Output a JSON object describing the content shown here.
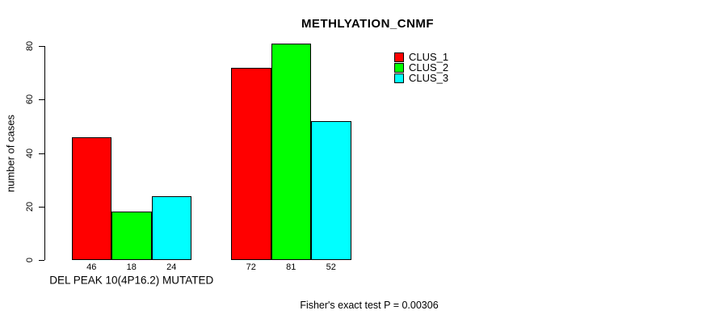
{
  "chart_data": {
    "type": "bar",
    "title": "METHLYATION_CNMF",
    "ylabel": "number of cases",
    "xlabel": "",
    "ylim": [
      0,
      80
    ],
    "yticks": [
      0,
      20,
      40,
      60,
      80
    ],
    "grid": false,
    "legend_position": "top-right",
    "categories": [
      "DEL PEAK 10(4P16.2) MUTATED",
      ""
    ],
    "series": [
      {
        "name": "CLUS_1",
        "color": "#ff0000",
        "values": [
          46,
          72
        ]
      },
      {
        "name": "CLUS_2",
        "color": "#00ff00",
        "values": [
          18,
          81
        ]
      },
      {
        "name": "CLUS_3",
        "color": "#00ffff",
        "values": [
          24,
          52
        ]
      }
    ],
    "bar_value_labels": [
      [
        "46",
        "18",
        "24"
      ],
      [
        "72",
        "81",
        "52"
      ]
    ],
    "annotation": "Fisher's exact test P = 0.00306",
    "colors": {
      "bar_border": "#000000",
      "axis": "#000000",
      "text": "#000000",
      "background": "#ffffff"
    }
  }
}
